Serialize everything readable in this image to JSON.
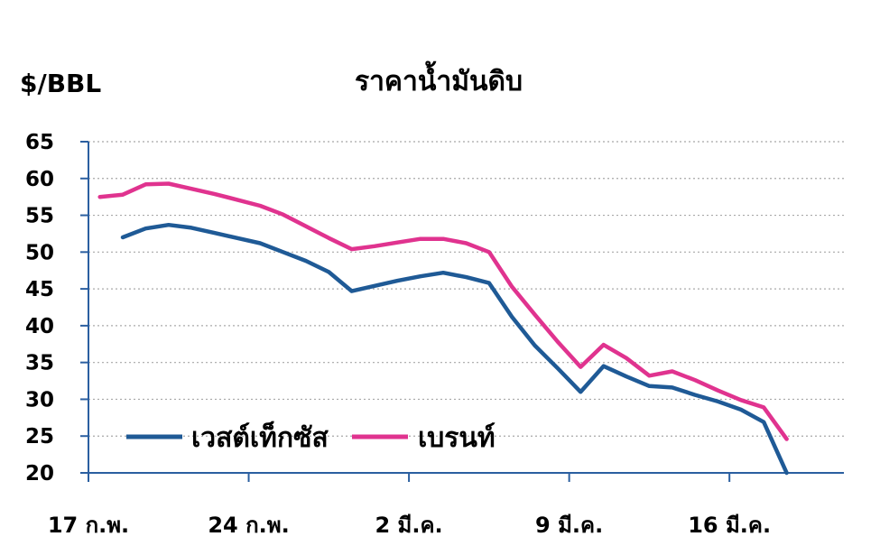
{
  "chart_data": {
    "type": "line",
    "title": "ราคาน้ำมันดิบ",
    "ylabel": "$/BBL",
    "xlabel": "",
    "ylim": [
      20,
      65
    ],
    "yticks": [
      20,
      25,
      30,
      35,
      40,
      45,
      50,
      55,
      60,
      65
    ],
    "xlim": [
      0,
      33
    ],
    "xtick_positions": [
      0,
      7,
      14,
      21,
      28
    ],
    "xtick_labels": [
      "17 ก.พ.",
      "24 ก.พ.",
      "2 มี.ค.",
      "9 มี.ค.",
      "16 มี.ค."
    ],
    "grid": true,
    "legend_placement": "bottom-left",
    "series": [
      {
        "name": "เวสต์เท็กซัส",
        "color": "#1f5a96",
        "x": [
          1.5,
          2.5,
          3.5,
          4.5,
          5.5,
          6.5,
          7.5,
          8.5,
          9.5,
          10.5,
          11.5,
          12.5,
          13.5,
          14.5,
          15.5,
          16.5,
          17.5,
          18.5,
          19.5,
          20.5,
          21.5,
          22.5,
          23.5,
          24.5,
          25.5,
          26.5,
          27.5,
          28.5,
          29.5,
          30.5
        ],
        "values": [
          52,
          53.2,
          53.7,
          53.3,
          52.6,
          51.9,
          51.2,
          50,
          48.8,
          47.3,
          44.7,
          45.4,
          46.1,
          46.7,
          47.2,
          46.6,
          45.8,
          41.2,
          37.3,
          34.2,
          31,
          34.5,
          33.1,
          31.8,
          31.6,
          30.6,
          29.7,
          28.6,
          26.9,
          20
        ]
      },
      {
        "name": "เบรนท์",
        "color": "#e0338f",
        "x": [
          0.5,
          1.5,
          2.5,
          3.5,
          4.5,
          5.5,
          6.5,
          7.5,
          8.5,
          9.5,
          10.5,
          11.5,
          12.5,
          13.5,
          14.5,
          15.5,
          16.5,
          17.5,
          18.5,
          19.5,
          20.5,
          21.5,
          22.5,
          23.5,
          24.5,
          25.5,
          26.5,
          27.5,
          28.5,
          29.5,
          30.5
        ],
        "values": [
          57.5,
          57.8,
          59.2,
          59.3,
          58.6,
          57.9,
          57.1,
          56.3,
          55.1,
          53.5,
          51.9,
          50.4,
          50.8,
          51.3,
          51.8,
          51.8,
          51.2,
          50,
          45.3,
          41.5,
          37.8,
          34.4,
          37.4,
          35.6,
          33.2,
          33.8,
          32.6,
          31.2,
          29.9,
          28.9,
          24.6
        ]
      }
    ]
  }
}
